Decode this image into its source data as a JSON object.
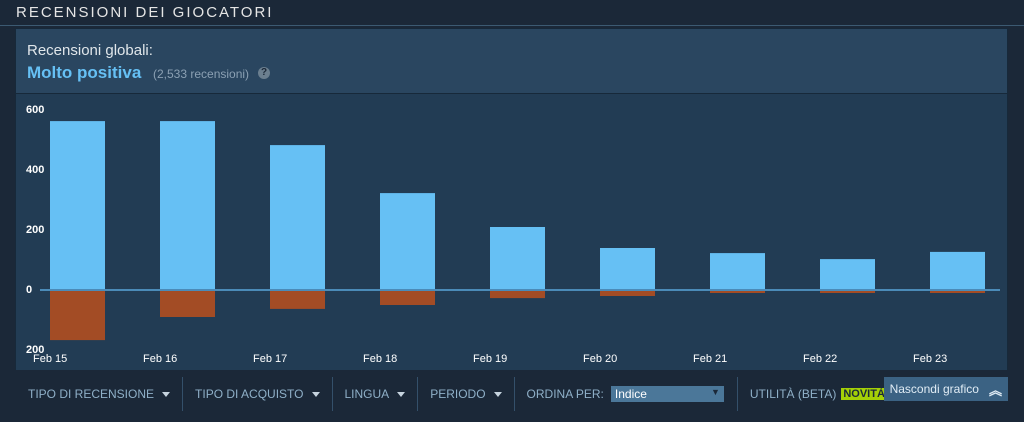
{
  "header": {
    "title": "RECENSIONI DEI GIOCATORI"
  },
  "summary": {
    "label": "Recensioni globali:",
    "rating": "Molto positiva",
    "count": "(2,533 recensioni)",
    "help": "?"
  },
  "chart_data": {
    "type": "bar",
    "categories": [
      "Feb 15",
      "Feb 16",
      "Feb 17",
      "Feb 18",
      "Feb 19",
      "Feb 20",
      "Feb 21",
      "Feb 22",
      "Feb 23"
    ],
    "series": [
      {
        "color": "#66c0f4",
        "values": [
          563,
          563,
          483,
          323,
          210,
          140,
          123,
          103,
          127
        ]
      },
      {
        "color": "#a34c25",
        "values": [
          -167,
          -90,
          -63,
          -50,
          -27,
          -20,
          -10,
          -10,
          -10
        ]
      }
    ],
    "ylim": [
      -200,
      650
    ],
    "yticks": [
      600,
      400,
      200,
      0,
      {
        "value": -200,
        "label": "200"
      }
    ],
    "grid": false
  },
  "filters": {
    "items": [
      "TIPO DI RECENSIONE",
      "TIPO DI ACQUISTO",
      "LINGUA",
      "PERIODO"
    ],
    "sort_label": "ORDINA PER:",
    "sort_value": "Indice",
    "helpfulness": "UTILITÀ (BETA)",
    "badge": "NOVITÀ!",
    "hide_button": "Nascondi grafico"
  }
}
